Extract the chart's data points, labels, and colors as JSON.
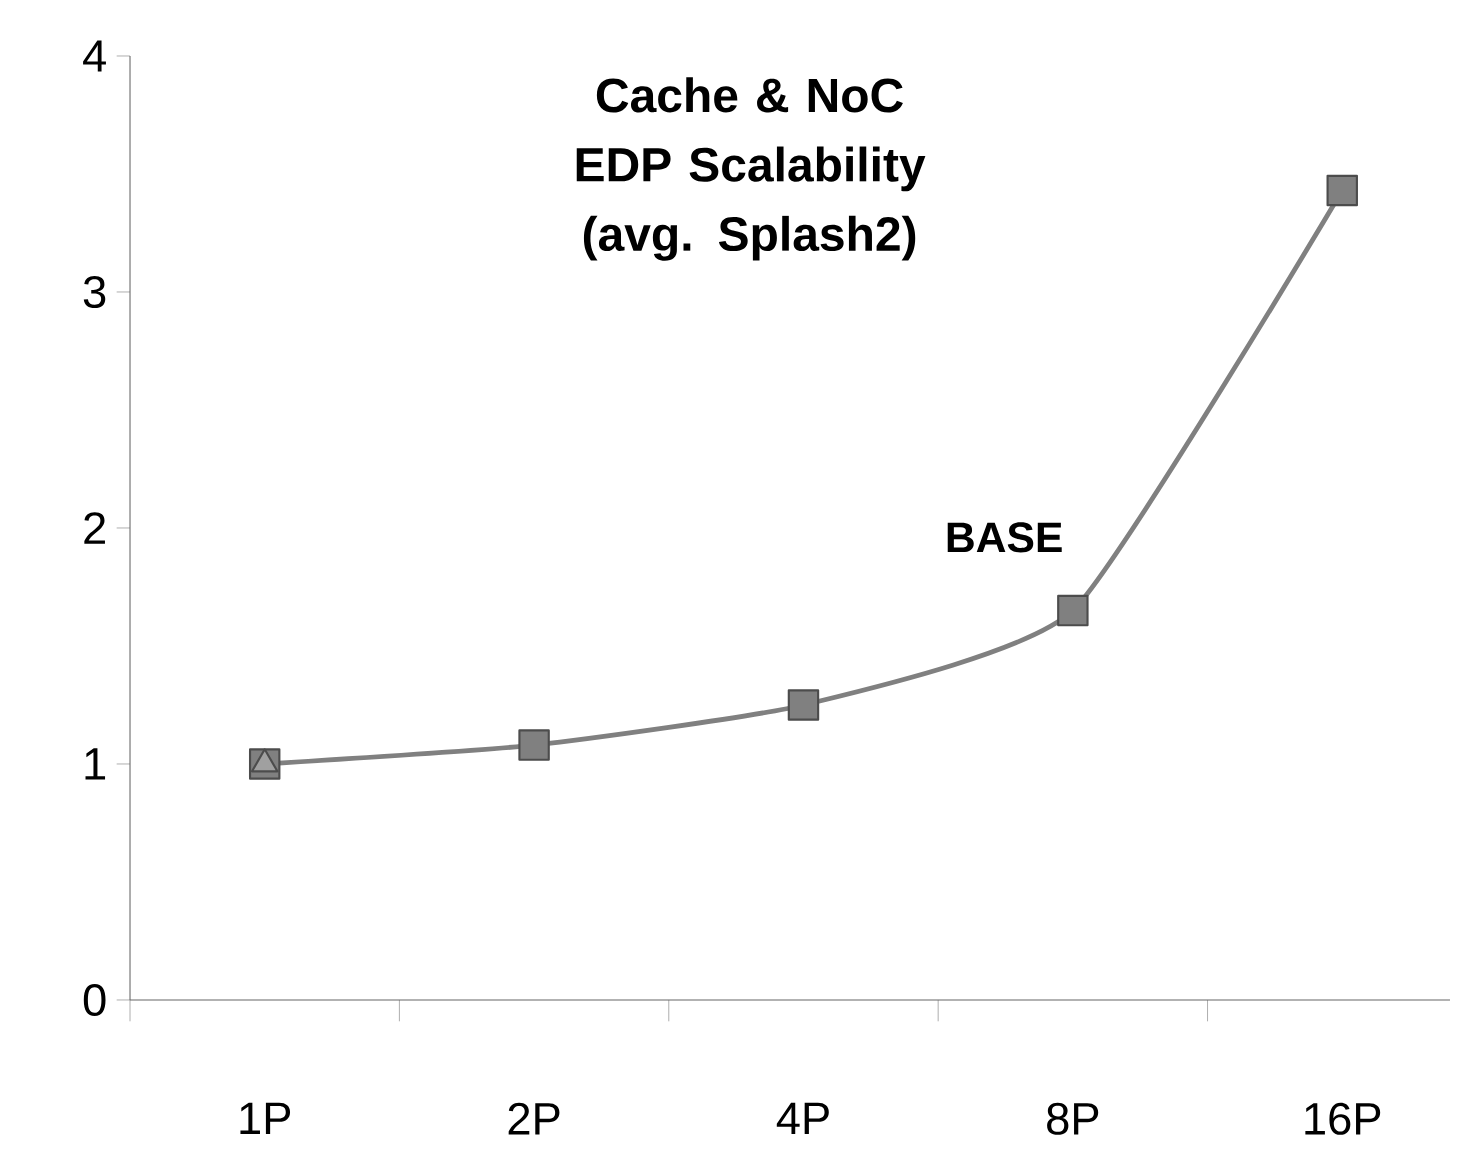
{
  "chart_data": {
    "type": "line",
    "title": "Cache & NoC EDP Scalability (avg. Splash2)",
    "categories": [
      "1P",
      "2P",
      "4P",
      "8P",
      "16P"
    ],
    "series": [
      {
        "color": "#808080",
        "marker": "square",
        "values": [
          1.0,
          1.08,
          1.25,
          1.65,
          3.43
        ]
      },
      {
        "color": "#a0a0a0",
        "marker": "triangle",
        "values": [
          1.0,
          null,
          null,
          null,
          null
        ]
      }
    ],
    "ylim": [
      0,
      4
    ],
    "yticks": [
      0,
      1,
      2,
      3,
      4
    ],
    "grid": false,
    "annotations": [
      "BASE"
    ]
  }
}
